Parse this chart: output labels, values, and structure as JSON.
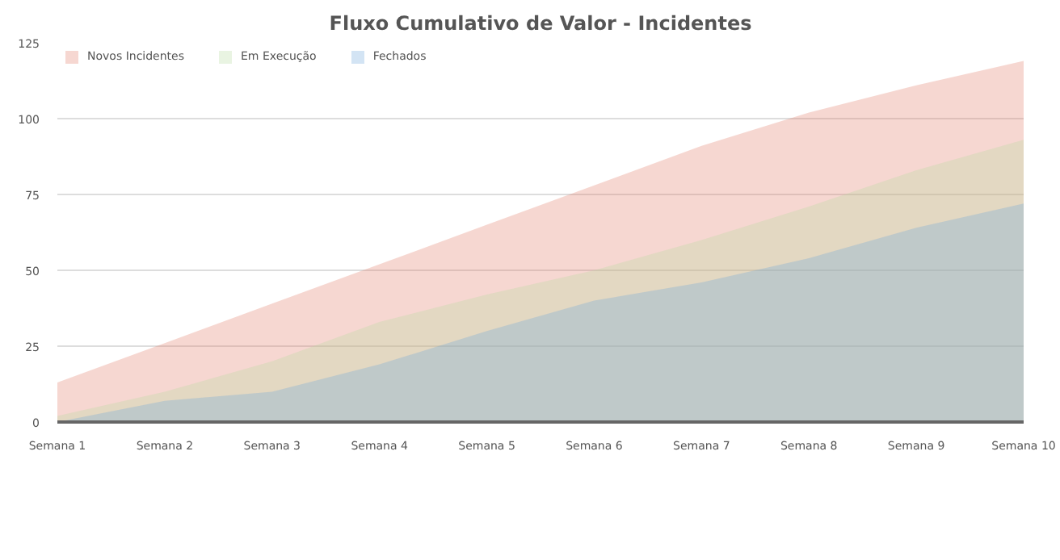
{
  "chart_data": {
    "type": "area",
    "title": "Fluxo Cumulativo de Valor - Incidentes",
    "categories": [
      "Semana 1",
      "Semana 2",
      "Semana 3",
      "Semana 4",
      "Semana 5",
      "Semana 6",
      "Semana 7",
      "Semana 8",
      "Semana 9",
      "Semana 10"
    ],
    "series": [
      {
        "name": "Novos Incidentes",
        "color": "#e07b67",
        "values": [
          13,
          26,
          39,
          52,
          65,
          78,
          91,
          102,
          111,
          119
        ]
      },
      {
        "name": "Em Execução",
        "color": "#b5d9a0",
        "values": [
          2,
          10,
          20,
          33,
          42,
          50,
          60,
          71,
          83,
          93
        ]
      },
      {
        "name": "Fechados",
        "color": "#6ea6dc",
        "values": [
          0,
          7,
          10,
          19,
          30,
          40,
          46,
          54,
          64,
          72
        ]
      }
    ],
    "ylim": [
      0,
      125
    ],
    "yticks": [
      0,
      25,
      50,
      75,
      100,
      125
    ],
    "grid": "y",
    "legend": "top left"
  }
}
